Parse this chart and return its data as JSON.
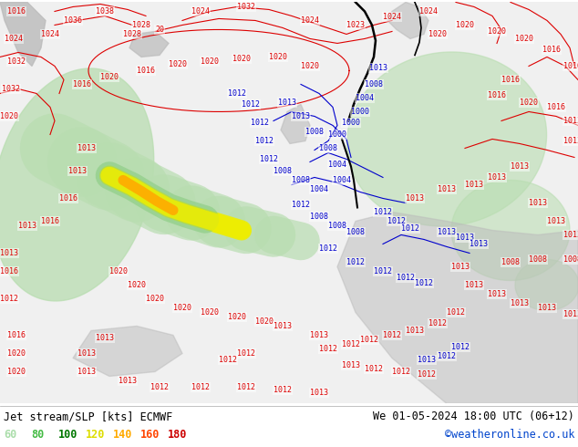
{
  "title_left": "Jet stream/SLP [kts] ECMWF",
  "title_right": "We 01-05-2024 18:00 UTC (06+12)",
  "copyright": "©weatheronline.co.uk",
  "legend_values": [
    "60",
    "80",
    "100",
    "120",
    "140",
    "160",
    "180"
  ],
  "legend_colors": [
    "#aaddaa",
    "#44bb44",
    "#007700",
    "#dddd00",
    "#ffaa00",
    "#ff4400",
    "#cc0000"
  ],
  "bg_color": "#ffffff",
  "map_bg": "#cce8cc",
  "bottom_bg": "#ffffff",
  "title_color": "#000000",
  "title_fontsize": 8.5,
  "legend_fontsize": 8.5,
  "copyright_color": "#0044cc",
  "figsize": [
    6.34,
    4.9
  ],
  "dpi": 100,
  "map_white_bg": "#f0f0f0",
  "green_light": "#c8e8c0",
  "green_mid": "#90cc88",
  "green_right": "#b8ddb0",
  "land_grey": "#bbbbbb",
  "contour_red": "#dd0000",
  "contour_blue": "#0000cc",
  "contour_black": "#000000",
  "jet_green1": "#b8ddb0",
  "jet_green2": "#88cc80",
  "jet_yellow": "#eeee00",
  "jet_orange": "#ffaa00",
  "jet_red": "#ff3300"
}
